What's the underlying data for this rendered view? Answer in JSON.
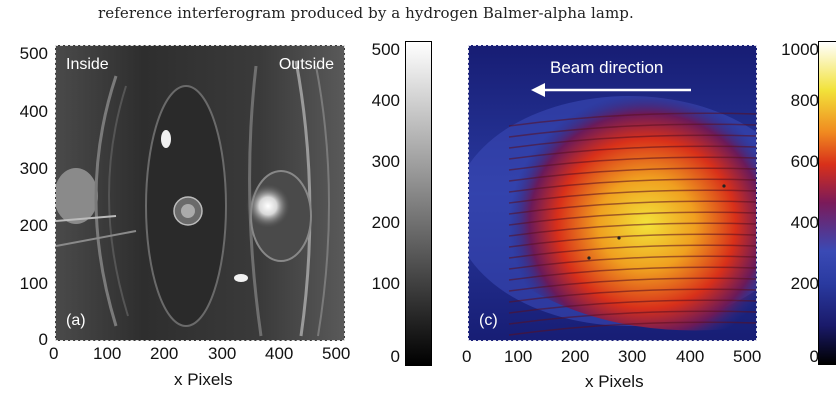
{
  "caption": "reference interferogram produced by a hydrogen Balmer-alpha lamp.",
  "panel_a": {
    "label": "(a)",
    "text_left": "Inside",
    "text_right": "Outside",
    "xlabel": "x Pixels",
    "x_ticks": [
      "0",
      "100",
      "200",
      "300",
      "400",
      "500"
    ],
    "y_ticks": [
      "0",
      "100",
      "200",
      "300",
      "400",
      "500"
    ],
    "colorbar_ticks": [
      "0",
      "100",
      "200",
      "300",
      "400",
      "500"
    ]
  },
  "panel_c": {
    "label": "(c)",
    "beam_label": "Beam direction",
    "xlabel": "x Pixels",
    "x_ticks": [
      "0",
      "100",
      "200",
      "300",
      "400",
      "500"
    ],
    "colorbar_ticks": [
      "0",
      "200",
      "400",
      "600",
      "800",
      "1000"
    ]
  },
  "colors": {
    "background_a": "#3a3a3a",
    "background_c": "#1a1f7a",
    "fringe_hot": "#ffd83a",
    "fringe_mid": "#e33b1c"
  }
}
